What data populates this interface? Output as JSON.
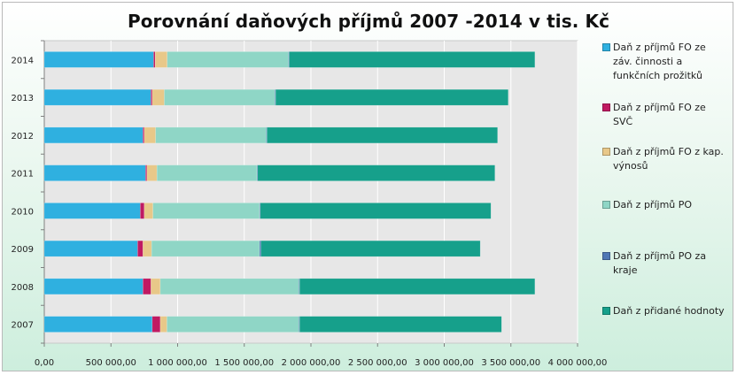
{
  "chart_data": {
    "type": "bar",
    "orientation": "horizontal",
    "stacked": true,
    "title": "Porovnání daňových příjmů 2007 -2014 v tis. Kč",
    "categories": [
      "2014",
      "2013",
      "2012",
      "2011",
      "2010",
      "2009",
      "2008",
      "2007"
    ],
    "xlim": [
      0,
      4000000
    ],
    "xticks": [
      0,
      500000,
      1000000,
      1500000,
      2000000,
      2500000,
      3000000,
      3500000,
      4000000
    ],
    "xtick_labels": [
      "0,00",
      "500 000,00",
      "1 000 000,00",
      "1 500 000,00",
      "2 000 000,00",
      "2 500 000,00",
      "3 000 000,00",
      "3 500 000,00",
      "4 000 000,00"
    ],
    "grid": true,
    "legend_position": "right",
    "series": [
      {
        "name": "Daň z příjmů FO ze záv. činnosti a funkčních prožitků",
        "color": "#2fb0e0",
        "values": [
          820000,
          800000,
          740000,
          760000,
          720000,
          700000,
          740000,
          810000
        ]
      },
      {
        "name": "Daň z příjmů FO ze SVČ",
        "color": "#c01a62",
        "values": [
          12000,
          10000,
          10000,
          10000,
          30000,
          40000,
          60000,
          60000
        ]
      },
      {
        "name": "Daň z příjmů FO z kap. výnosů",
        "color": "#e8c889",
        "values": [
          90000,
          90000,
          85000,
          75000,
          65000,
          65000,
          70000,
          50000
        ]
      },
      {
        "name": "Daň z příjmů PO",
        "color": "#8fd6c6",
        "values": [
          910000,
          830000,
          830000,
          750000,
          800000,
          810000,
          1040000,
          990000
        ]
      },
      {
        "name": "Daň z příjmů PO za kraje",
        "color": "#4f77b5",
        "values": [
          5000,
          5000,
          5000,
          5000,
          5000,
          10000,
          5000,
          5000
        ]
      },
      {
        "name": "Daň z přidané hodnoty",
        "color": "#16a08b",
        "values": [
          1843000,
          1745000,
          1730000,
          1780000,
          1730000,
          1645000,
          1765000,
          1515000
        ]
      }
    ]
  }
}
